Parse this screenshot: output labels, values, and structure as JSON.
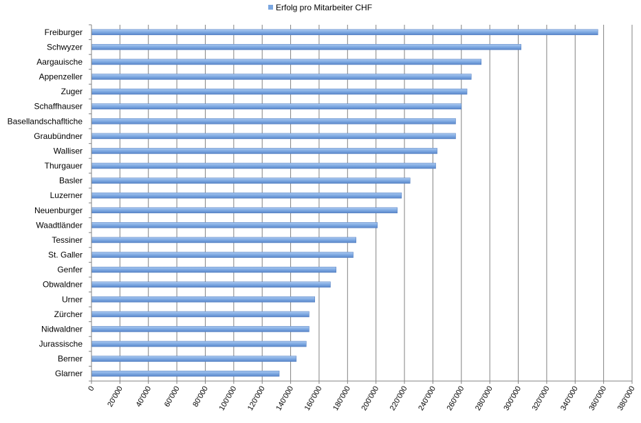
{
  "chart_data": {
    "type": "bar",
    "orientation": "horizontal",
    "legend": {
      "position": "top",
      "entries": [
        "Erfolg pro Mitarbeiter CHF"
      ]
    },
    "series": [
      {
        "name": "Erfolg pro Mitarbeiter CHF",
        "color": "#7aa6e0",
        "values": [
          356000,
          302000,
          274000,
          267000,
          264000,
          260000,
          256000,
          256000,
          243000,
          242000,
          224000,
          218000,
          215000,
          201000,
          186000,
          184000,
          172000,
          168000,
          157000,
          153000,
          153000,
          151000,
          144000,
          132000
        ]
      }
    ],
    "categories": [
      "Freiburger",
      "Schwyzer",
      "Aargauische",
      "Appenzeller",
      "Zuger",
      "Schaffhauser",
      "Basellandschafltiche",
      "Graubündner",
      "Walliser",
      "Thurgauer",
      "Basler",
      "Luzerner",
      "Neuenburger",
      "Waadtländer",
      "Tessiner",
      "St. Galler",
      "Genfer",
      "Obwaldner",
      "Urner",
      "Zürcher",
      "Nidwaldner",
      "Jurassische",
      "Berner",
      "Glarner"
    ],
    "xlim": [
      0,
      380000
    ],
    "xtick_labels": [
      "0",
      "20'000",
      "40'000",
      "60'000",
      "80'000",
      "100'000",
      "120'000",
      "140'000",
      "160'000",
      "180'000",
      "200'000",
      "220'000",
      "240'000",
      "260'000",
      "280'000",
      "300'000",
      "320'000",
      "340'000",
      "360'000",
      "380'000"
    ],
    "grid": "vertical"
  }
}
